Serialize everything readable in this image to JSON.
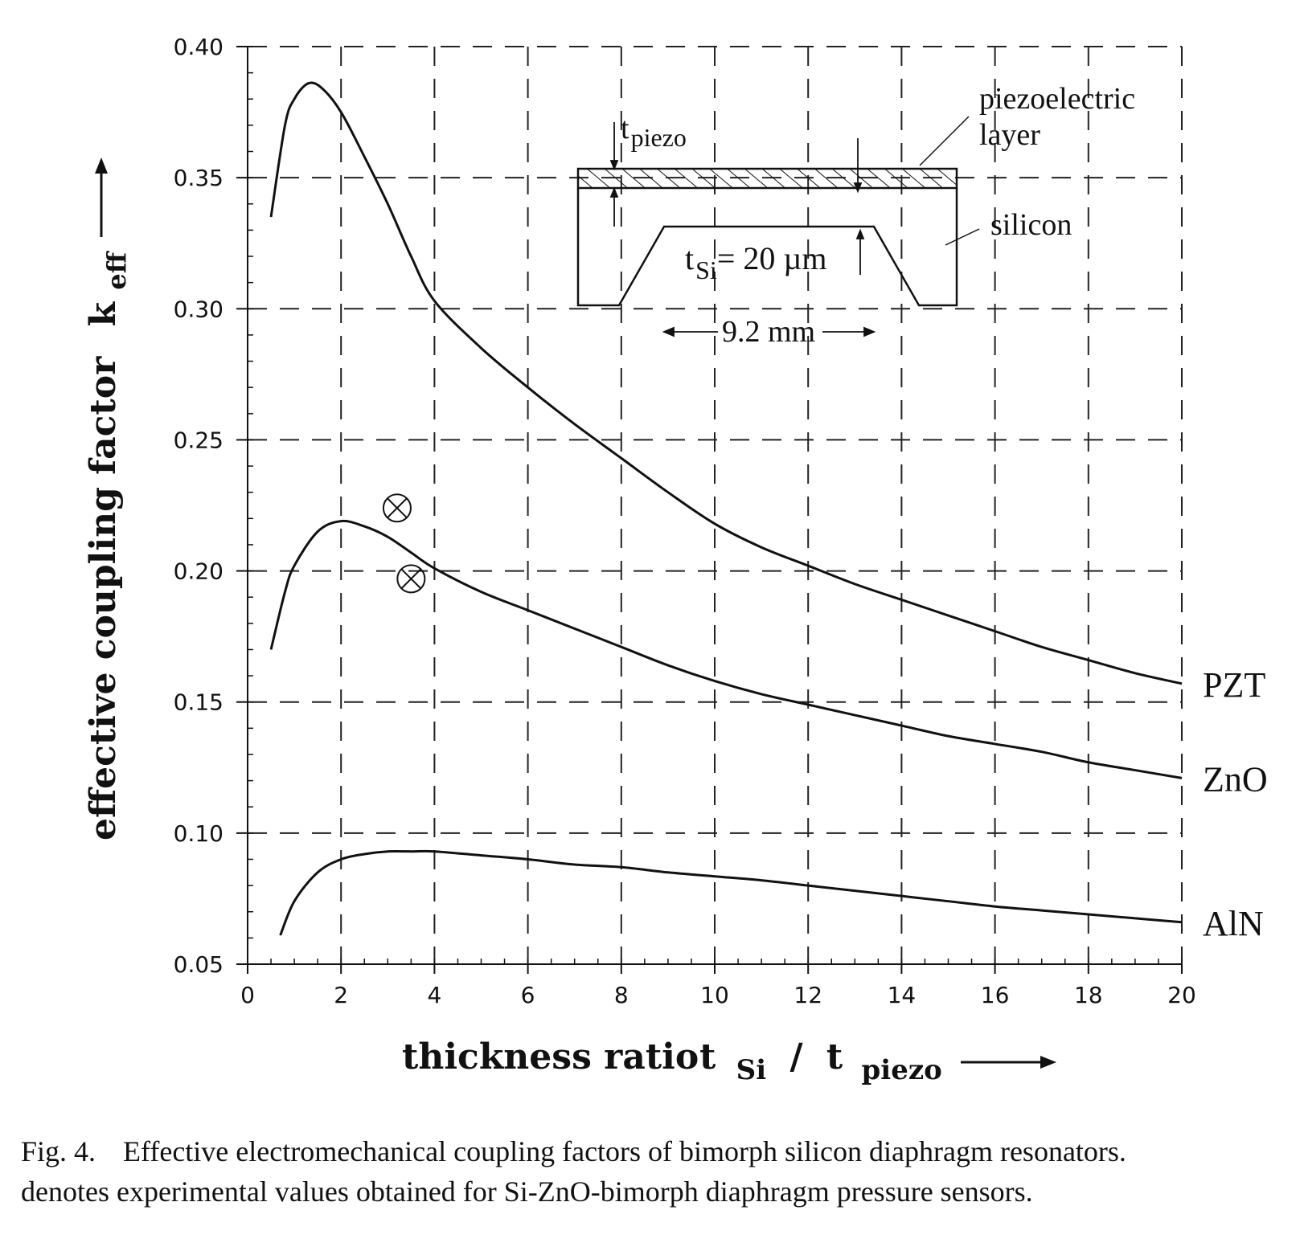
{
  "chart_data": {
    "type": "line",
    "xlabel": "thickness ratio",
    "xlabel_math": {
      "t1": "t",
      "s1": "Si",
      "slash": "/",
      "t2": "t",
      "s2": "piezo"
    },
    "ylabel": "effective coupling factor",
    "ylabel_math": {
      "t": "k",
      "s": "eff"
    },
    "xlim": [
      0,
      20
    ],
    "ylim": [
      0.05,
      0.4
    ],
    "x_ticks": [
      "0",
      "2",
      "4",
      "6",
      "8",
      "10",
      "12",
      "14",
      "16",
      "18",
      "20"
    ],
    "y_ticks": [
      "0.05",
      "0.10",
      "0.15",
      "0.20",
      "0.25",
      "0.30",
      "0.35",
      "0.40"
    ],
    "grid": true,
    "series": [
      {
        "name": "PZT",
        "x": [
          0.5,
          0.8,
          1.0,
          1.3,
          1.6,
          2.0,
          2.5,
          3.0,
          3.5,
          4.0,
          5.0,
          6.0,
          7.0,
          8.0,
          9.0,
          10.0,
          11.0,
          12.0,
          13.0,
          14.0,
          15.0,
          16.0,
          17.0,
          18.0,
          19.0,
          20.0
        ],
        "y": [
          0.335,
          0.37,
          0.38,
          0.386,
          0.384,
          0.375,
          0.358,
          0.34,
          0.32,
          0.303,
          0.285,
          0.27,
          0.256,
          0.243,
          0.23,
          0.218,
          0.209,
          0.202,
          0.195,
          0.189,
          0.183,
          0.177,
          0.171,
          0.166,
          0.161,
          0.157
        ]
      },
      {
        "name": "ZnO",
        "x": [
          0.5,
          0.8,
          1.0,
          1.5,
          2.0,
          2.5,
          3.0,
          3.5,
          4.0,
          5.0,
          6.0,
          7.0,
          8.0,
          9.0,
          10.0,
          11.0,
          12.0,
          13.0,
          14.0,
          15.0,
          16.0,
          17.0,
          18.0,
          19.0,
          20.0
        ],
        "y": [
          0.17,
          0.192,
          0.202,
          0.215,
          0.219,
          0.217,
          0.213,
          0.207,
          0.201,
          0.192,
          0.185,
          0.178,
          0.171,
          0.164,
          0.158,
          0.153,
          0.149,
          0.145,
          0.141,
          0.137,
          0.134,
          0.131,
          0.127,
          0.124,
          0.121
        ]
      },
      {
        "name": "AlN",
        "x": [
          0.7,
          1.0,
          1.5,
          2.0,
          2.5,
          3.0,
          3.5,
          4.0,
          5.0,
          6.0,
          7.0,
          8.0,
          9.0,
          10.0,
          11.0,
          12.0,
          13.0,
          14.0,
          15.0,
          16.0,
          17.0,
          18.0,
          19.0,
          20.0
        ],
        "y": [
          0.061,
          0.074,
          0.085,
          0.09,
          0.092,
          0.093,
          0.093,
          0.093,
          0.0915,
          0.09,
          0.088,
          0.087,
          0.085,
          0.0835,
          0.082,
          0.08,
          0.078,
          0.076,
          0.074,
          0.072,
          0.0705,
          0.069,
          0.0675,
          0.066
        ]
      }
    ],
    "experimental_points": {
      "label": "⊗",
      "x": [
        3.2,
        3.5
      ],
      "y": [
        0.224,
        0.197
      ]
    }
  },
  "inset": {
    "t_piezo": {
      "t": "t",
      "s": "piezo"
    },
    "piezo_label_1": "piezoelectric",
    "piezo_label_2": "layer",
    "silicon_label": "silicon",
    "t_si": {
      "t": "t",
      "s": "Si",
      "rest": "= 20 µm"
    },
    "width_label": "9.2 mm"
  },
  "caption": {
    "fig_no": "Fig. 4.",
    "line1": "Effective electromechanical coupling factors of bimorph silicon diaphragm resonators.",
    "line2": "denotes experimental values obtained for Si-ZnO-bimorph diaphragm pressure sensors."
  }
}
